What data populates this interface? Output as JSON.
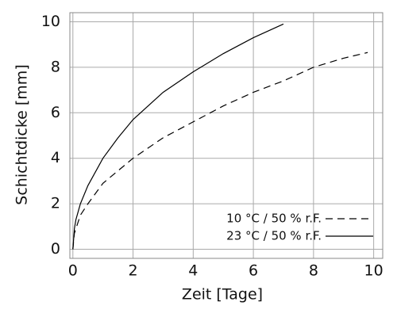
{
  "chart_data": {
    "type": "line",
    "xlabel": "Zeit [Tage]",
    "ylabel": "Schichtdicke [mm]",
    "xlim": [
      -0.1,
      10.3
    ],
    "ylim": [
      -0.4,
      10.4
    ],
    "xticks": [
      0,
      2,
      4,
      6,
      8,
      10
    ],
    "yticks": [
      0,
      2,
      4,
      6,
      8,
      10
    ],
    "grid": true,
    "legend": "lower right",
    "series": [
      {
        "name": "10 °C / 50 %  r.F.",
        "color": "#000000",
        "dash": true,
        "x": [
          0,
          0.05,
          0.1,
          0.25,
          0.5,
          1,
          2,
          3,
          4,
          5,
          6,
          7,
          8,
          9,
          9.8
        ],
        "values": [
          0,
          0.7,
          0.9,
          1.5,
          2.0,
          2.9,
          4.0,
          4.9,
          5.6,
          6.3,
          6.9,
          7.4,
          8.0,
          8.4,
          8.65
        ]
      },
      {
        "name": "23 °C / 50 %  r.F.",
        "color": "#000000",
        "dash": false,
        "x": [
          0,
          0.05,
          0.1,
          0.25,
          0.5,
          1,
          1.5,
          2,
          3,
          4,
          5,
          6,
          7
        ],
        "values": [
          0,
          0.9,
          1.3,
          2.0,
          2.8,
          4.0,
          4.9,
          5.7,
          6.9,
          7.8,
          8.6,
          9.3,
          9.9
        ]
      }
    ]
  }
}
